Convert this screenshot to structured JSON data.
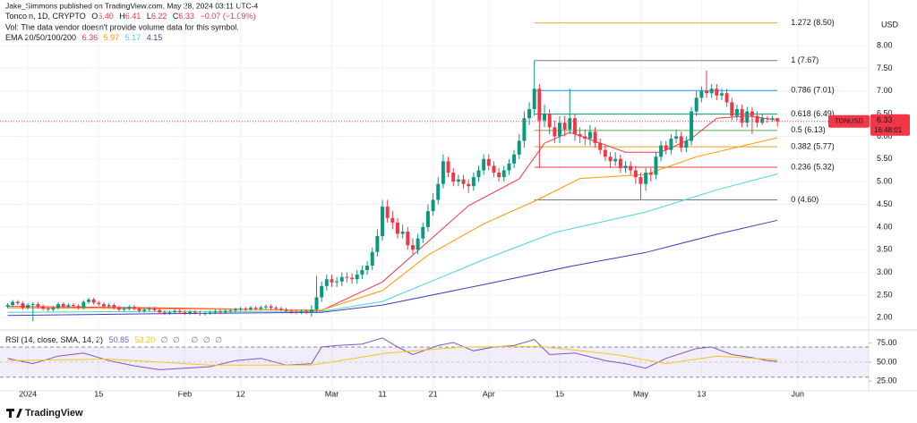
{
  "header": {
    "publisher": "Jake_Simmons published on TradingView.com, May 28, 2024 03:11 UTC-4",
    "symbol": "Toncoin, 1D, CRYPTO",
    "ohlc": [
      {
        "label": "O",
        "value": "6.40"
      },
      {
        "label": "H",
        "value": "6.41"
      },
      {
        "label": "L",
        "value": "6.22"
      },
      {
        "label": "C",
        "value": "6.33"
      }
    ],
    "change": "−0.07 (−1.09%)",
    "volume_note": "Vol: The data vendor doesn't provide volume data for this symbol.",
    "ema_legend": {
      "label": "EMA 20/50/100/200",
      "values": [
        "6.36",
        "5.97",
        "5.17",
        "4.15"
      ]
    }
  },
  "chart_data": [
    {
      "type": "candlestick",
      "currency": "USD",
      "symbol_tag": "TONUSD",
      "last_price": 6.33,
      "countdown": "16:48:01",
      "up_color": "#089981",
      "down_color": "#f23645",
      "grid": true,
      "open": [
        2.25,
        2.28,
        2.35,
        2.32,
        2.22,
        2.28,
        2.3,
        2.25,
        2.2,
        2.18,
        2.22,
        2.3,
        2.25,
        2.28,
        2.26,
        2.22,
        2.35,
        2.4,
        2.33,
        2.3,
        2.25,
        2.28,
        2.22,
        2.18,
        2.2,
        2.24,
        2.2,
        2.15,
        2.18,
        2.2,
        2.17,
        2.12,
        2.1,
        2.12,
        2.15,
        2.12,
        2.1,
        2.13,
        2.11,
        2.09,
        2.1,
        2.12,
        2.14,
        2.12,
        2.15,
        2.16,
        2.18,
        2.2,
        2.19,
        2.22,
        2.2,
        2.23,
        2.25,
        2.22,
        2.2,
        2.18,
        2.15,
        2.13,
        2.12,
        2.14,
        2.12,
        2.18,
        2.45,
        2.7,
        2.85,
        2.78,
        2.8,
        2.9,
        2.88,
        2.85,
        2.95,
        3.05,
        3.15,
        3.45,
        3.8,
        4.45,
        4.2,
        4.1,
        3.85,
        3.9,
        3.6,
        3.5,
        3.75,
        4.0,
        4.35,
        4.6,
        4.95,
        5.45,
        5.2,
        5.0,
        5.05,
        4.95,
        4.9,
        5.1,
        5.25,
        5.5,
        5.35,
        5.2,
        5.1,
        5.25,
        5.4,
        5.6,
        5.9,
        6.4,
        6.6,
        7.05,
        6.35,
        6.5,
        6.2,
        6.0,
        6.3,
        6.15,
        6.4,
        6.05,
        6.0,
        5.95,
        6.1,
        5.85,
        5.7,
        5.55,
        5.45,
        5.5,
        5.3,
        5.35,
        5.25,
        5.1,
        4.95,
        5.2,
        5.15,
        5.55,
        5.8,
        5.7,
        5.95,
        6.0,
        5.75,
        5.9,
        6.55,
        6.85,
        7.0,
        6.95,
        7.05,
        6.9,
        6.95,
        6.75,
        6.45,
        6.6,
        6.3,
        6.55,
        6.45,
        6.3,
        6.4,
        6.38,
        6.4
      ],
      "high": [
        2.32,
        2.39,
        2.39,
        2.36,
        2.32,
        2.34,
        2.34,
        2.29,
        2.24,
        2.26,
        2.34,
        2.34,
        2.32,
        2.32,
        2.3,
        2.39,
        2.44,
        2.44,
        2.37,
        2.34,
        2.32,
        2.32,
        2.26,
        2.24,
        2.28,
        2.28,
        2.24,
        2.22,
        2.24,
        2.24,
        2.21,
        2.16,
        2.16,
        2.19,
        2.19,
        2.16,
        2.17,
        2.17,
        2.15,
        2.14,
        2.16,
        2.18,
        2.18,
        2.19,
        2.2,
        2.22,
        2.24,
        2.24,
        2.26,
        2.26,
        2.27,
        2.29,
        2.29,
        2.26,
        2.24,
        2.22,
        2.19,
        2.17,
        2.18,
        2.18,
        2.28,
        2.92,
        2.8,
        2.95,
        2.95,
        2.9,
        3.0,
        3.0,
        2.98,
        3.05,
        3.15,
        3.25,
        3.55,
        3.95,
        4.6,
        4.6,
        4.35,
        4.2,
        4.05,
        4.0,
        3.75,
        3.85,
        4.1,
        4.5,
        4.75,
        5.1,
        5.6,
        5.55,
        5.3,
        5.15,
        5.15,
        5.05,
        5.2,
        5.35,
        5.6,
        5.6,
        5.45,
        5.3,
        5.35,
        5.5,
        5.7,
        6.05,
        6.55,
        6.75,
        7.67,
        7.15,
        6.7,
        6.6,
        6.35,
        6.45,
        6.45,
        7.05,
        6.5,
        6.2,
        6.15,
        6.25,
        6.2,
        5.95,
        5.8,
        5.65,
        5.65,
        5.6,
        5.45,
        5.45,
        5.35,
        5.2,
        5.3,
        5.3,
        5.65,
        5.9,
        5.9,
        6.05,
        6.15,
        6.1,
        6.0,
        6.65,
        7.0,
        7.1,
        7.45,
        7.15,
        7.15,
        7.05,
        7.05,
        6.85,
        6.7,
        6.7,
        6.65,
        6.65,
        6.55,
        6.5,
        6.45,
        6.45,
        6.41
      ],
      "low": [
        2.21,
        2.24,
        2.28,
        2.18,
        2.18,
        1.92,
        2.21,
        2.16,
        2.14,
        2.14,
        2.18,
        2.21,
        2.21,
        2.22,
        2.18,
        2.18,
        2.31,
        2.29,
        2.26,
        2.21,
        2.21,
        2.18,
        2.14,
        2.14,
        2.16,
        2.16,
        2.11,
        2.11,
        2.14,
        2.13,
        2.08,
        2.06,
        2.06,
        2.08,
        2.08,
        2.06,
        2.06,
        2.07,
        2.05,
        2.05,
        2.06,
        2.08,
        2.08,
        2.08,
        2.11,
        2.12,
        2.14,
        2.15,
        2.15,
        2.16,
        2.16,
        2.19,
        2.18,
        2.16,
        2.14,
        2.11,
        2.09,
        2.08,
        2.08,
        2.08,
        2.02,
        2.1,
        2.35,
        2.6,
        2.68,
        2.68,
        2.7,
        2.78,
        2.75,
        2.75,
        2.85,
        2.95,
        3.05,
        3.35,
        3.7,
        4.1,
        3.95,
        3.75,
        3.75,
        3.5,
        3.4,
        3.4,
        3.65,
        3.9,
        4.25,
        4.5,
        4.85,
        5.1,
        4.9,
        4.9,
        4.85,
        4.75,
        4.8,
        5.0,
        5.15,
        5.25,
        5.1,
        5.0,
        5.0,
        5.15,
        5.3,
        5.5,
        5.75,
        6.25,
        6.45,
        5.3,
        6.2,
        6.05,
        5.85,
        5.85,
        6.0,
        6.05,
        5.9,
        5.85,
        5.8,
        5.8,
        5.75,
        5.6,
        5.45,
        5.3,
        5.35,
        5.2,
        5.2,
        5.15,
        4.95,
        4.6,
        4.8,
        5.0,
        5.05,
        5.45,
        5.6,
        5.6,
        5.85,
        5.65,
        5.65,
        5.8,
        6.45,
        6.75,
        6.85,
        6.85,
        6.8,
        6.8,
        6.65,
        6.35,
        6.35,
        6.2,
        6.2,
        6.05,
        6.2,
        6.25,
        6.3,
        6.32,
        6.22
      ],
      "close": [
        2.28,
        2.35,
        2.32,
        2.22,
        2.28,
        2.3,
        2.25,
        2.2,
        2.18,
        2.22,
        2.3,
        2.25,
        2.28,
        2.26,
        2.22,
        2.35,
        2.4,
        2.33,
        2.3,
        2.25,
        2.28,
        2.22,
        2.18,
        2.2,
        2.24,
        2.2,
        2.15,
        2.18,
        2.2,
        2.17,
        2.12,
        2.1,
        2.12,
        2.15,
        2.12,
        2.1,
        2.13,
        2.11,
        2.09,
        2.1,
        2.12,
        2.14,
        2.12,
        2.15,
        2.16,
        2.18,
        2.2,
        2.19,
        2.22,
        2.2,
        2.23,
        2.25,
        2.22,
        2.2,
        2.18,
        2.15,
        2.13,
        2.12,
        2.14,
        2.12,
        2.18,
        2.45,
        2.7,
        2.85,
        2.78,
        2.8,
        2.9,
        2.88,
        2.85,
        2.95,
        3.05,
        3.15,
        3.45,
        3.8,
        4.45,
        4.2,
        4.1,
        3.85,
        3.9,
        3.6,
        3.5,
        3.75,
        4.0,
        4.35,
        4.6,
        4.95,
        5.45,
        5.2,
        5.0,
        5.05,
        4.95,
        4.9,
        5.1,
        5.25,
        5.5,
        5.35,
        5.2,
        5.1,
        5.25,
        5.4,
        5.6,
        5.9,
        6.4,
        6.6,
        7.05,
        6.35,
        6.5,
        6.2,
        6.0,
        6.3,
        6.15,
        6.4,
        6.05,
        6.0,
        5.95,
        6.1,
        5.85,
        5.7,
        5.55,
        5.45,
        5.5,
        5.3,
        5.35,
        5.25,
        5.1,
        4.95,
        5.2,
        5.15,
        5.55,
        5.8,
        5.7,
        5.95,
        6.0,
        5.75,
        5.9,
        6.55,
        6.85,
        7.0,
        6.95,
        7.05,
        6.9,
        6.95,
        6.75,
        6.45,
        6.6,
        6.3,
        6.55,
        6.45,
        6.3,
        6.4,
        6.38,
        6.4,
        6.33
      ],
      "ema": [
        {
          "color": "#f23645",
          "x": [
            0,
            30,
            62,
            74,
            80,
            91,
            101,
            106,
            111,
            122,
            129,
            135,
            140,
            146,
            152
          ],
          "values": [
            2.25,
            2.22,
            2.16,
            2.79,
            3.38,
            4.47,
            5.06,
            5.85,
            6.09,
            5.65,
            5.65,
            5.95,
            6.4,
            6.45,
            6.36
          ]
        },
        {
          "color": "#ff9800",
          "x": [
            0,
            30,
            62,
            74,
            83,
            94,
            104,
            113,
            126,
            136,
            152
          ],
          "values": [
            2.22,
            2.2,
            2.17,
            2.6,
            3.38,
            4.07,
            4.57,
            5.07,
            5.16,
            5.55,
            5.97
          ]
        },
        {
          "color": "#4dd0e1",
          "x": [
            0,
            30,
            62,
            74,
            94,
            108,
            126,
            140,
            152
          ],
          "values": [
            2.12,
            2.14,
            2.14,
            2.36,
            3.28,
            3.88,
            4.33,
            4.82,
            5.17
          ]
        },
        {
          "color": "#3f3fb5",
          "x": [
            0,
            30,
            62,
            74,
            94,
            111,
            126,
            140,
            152
          ],
          "values": [
            2.05,
            2.09,
            2.12,
            2.28,
            2.73,
            3.13,
            3.44,
            3.84,
            4.15
          ]
        }
      ],
      "fib": {
        "xspan": [
          104,
          152
        ],
        "levels": [
          {
            "label": "1.272 (8.50)",
            "value": 8.5,
            "color": "#f5a623"
          },
          {
            "label": "1 (7.67)",
            "value": 7.67,
            "color": "#787b86"
          },
          {
            "label": "0.786 (7.01)",
            "value": 7.01,
            "color": "#2196f3"
          },
          {
            "label": "0.618 (6.49)",
            "value": 6.49,
            "color": "#089981"
          },
          {
            "label": "0.5 (6.13)",
            "value": 6.13,
            "color": "#4caf50"
          },
          {
            "label": "0.382 (5.77)",
            "value": 5.77,
            "color": "#f59a23"
          },
          {
            "label": "0.236 (5.32)",
            "value": 5.32,
            "color": "#f23645"
          },
          {
            "label": "0 (4.60)",
            "value": 4.6,
            "color": "#787b86"
          }
        ]
      },
      "ylim": [
        1.75,
        9
      ],
      "yticks": [
        {
          "value": 2,
          "label": "2.00"
        },
        {
          "value": 2.5,
          "label": "2.50"
        },
        {
          "value": 3,
          "label": "3.00"
        },
        {
          "value": 3.5,
          "label": "3.50"
        },
        {
          "value": 4,
          "label": "4.00"
        },
        {
          "value": 4.5,
          "label": "4.50"
        },
        {
          "value": 5,
          "label": "5.00"
        },
        {
          "value": 5.5,
          "label": "5.50"
        },
        {
          "value": 6,
          "label": "6.00"
        },
        {
          "value": 6.5,
          "label": "6.50"
        },
        {
          "value": 7,
          "label": "7.00"
        },
        {
          "value": 7.5,
          "label": "7.50"
        },
        {
          "value": 8,
          "label": "8.00"
        }
      ],
      "xlim": [
        -1.5,
        170
      ],
      "xticks": [
        {
          "value": 4,
          "label": "2024"
        },
        {
          "value": 18,
          "label": "15"
        },
        {
          "value": 35,
          "label": "Feb"
        },
        {
          "value": 46,
          "label": "12"
        },
        {
          "value": 64,
          "label": "Mar"
        },
        {
          "value": 74,
          "label": "11"
        },
        {
          "value": 84,
          "label": "21"
        },
        {
          "value": 95,
          "label": "Apr"
        },
        {
          "value": 109,
          "label": "15"
        },
        {
          "value": 125,
          "label": "May"
        },
        {
          "value": 137,
          "label": "13"
        },
        {
          "value": 156,
          "label": "Jun"
        }
      ]
    },
    {
      "type": "line",
      "legend": {
        "label": "RSI (14, close, SMA, 14, 2)",
        "values": [
          "50.85",
          "53.20"
        ],
        "extras": [
          "∅",
          "∅",
          "∅",
          "∅",
          "∅"
        ]
      },
      "series": [
        {
          "color": "#7e57c2",
          "x": [
            0,
            5,
            10,
            15,
            20,
            25,
            30,
            35,
            40,
            45,
            50,
            55,
            60,
            62,
            65,
            70,
            74,
            77,
            80,
            85,
            88,
            92,
            96,
            100,
            104,
            107,
            112,
            118,
            122,
            126,
            130,
            136,
            139,
            143,
            147,
            150,
            152
          ],
          "values": [
            55,
            48,
            58,
            62,
            52,
            45,
            40,
            42,
            44,
            52,
            55,
            46,
            48,
            70,
            72,
            74,
            82,
            70,
            60,
            72,
            76,
            65,
            70,
            72,
            80,
            60,
            62,
            52,
            48,
            42,
            55,
            68,
            70,
            60,
            56,
            52,
            50.85
          ]
        },
        {
          "color": "#f5c518",
          "x": [
            0,
            20,
            40,
            60,
            75,
            90,
            105,
            120,
            130,
            140,
            152
          ],
          "values": [
            52,
            54,
            46,
            46,
            62,
            70,
            71,
            60,
            48,
            58,
            53.2
          ]
        }
      ],
      "band": [
        30,
        70
      ],
      "midline": 50,
      "ylim": [
        12,
        89
      ],
      "yticks": [
        {
          "value": 25,
          "label": "25.00"
        },
        {
          "value": 50,
          "label": "50.00"
        },
        {
          "value": 75,
          "label": "75.00"
        }
      ]
    }
  ],
  "footer": "TradingView"
}
